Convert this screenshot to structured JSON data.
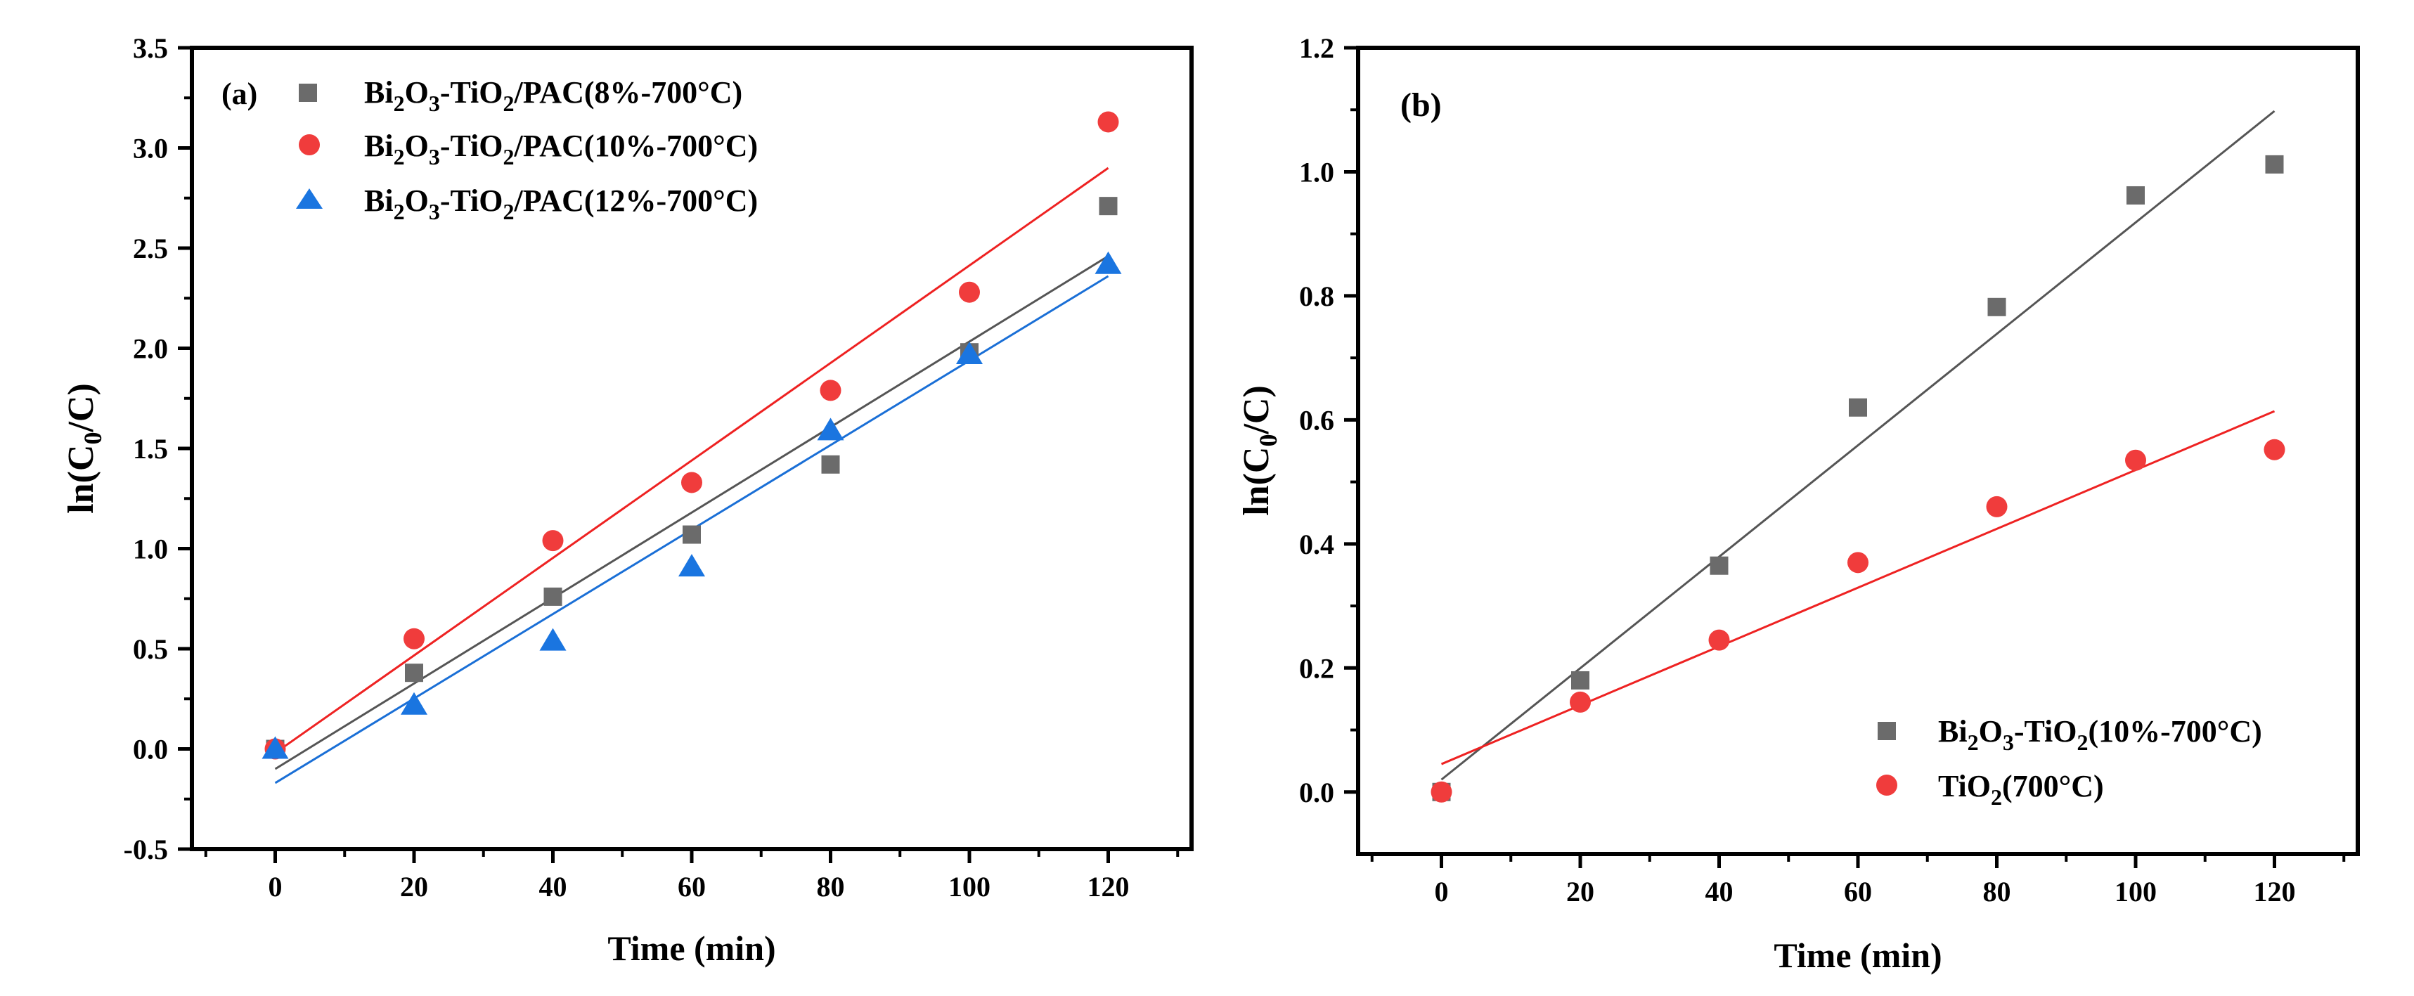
{
  "figure": {
    "x_label": "Time (min)",
    "y_label": "ln(C0/C)"
  },
  "chart_data": [
    {
      "type": "scatter",
      "panel_label": "(a)",
      "xlabel": "Time (min)",
      "ylabel": "ln(C0/C)",
      "xlim": [
        -12,
        132
      ],
      "ylim": [
        -0.5,
        3.5
      ],
      "xticks": [
        0,
        20,
        40,
        60,
        80,
        100,
        120
      ],
      "yticks": [
        -0.5,
        0.0,
        0.5,
        1.0,
        1.5,
        2.0,
        2.5,
        3.0,
        3.5
      ],
      "ytick_decimals": 1,
      "legend_position": "top-left",
      "series": [
        {
          "name": "Bi2O3-TiO2/PAC(8%-700°C)",
          "legend": {
            "a": "Bi",
            "s1": "2",
            "b": "O",
            "s2": "3",
            "c": "-TiO",
            "s3": "2",
            "d": "/PAC(8%-700°C)"
          },
          "marker": "square",
          "color": "#6b6b6b",
          "line_color": "#555555",
          "x": [
            0,
            20,
            40,
            60,
            80,
            100,
            120
          ],
          "y": [
            0.0,
            0.38,
            0.76,
            1.07,
            1.42,
            1.98,
            2.71
          ],
          "fit": {
            "x": [
              0,
              120
            ],
            "y": [
              -0.1,
              2.46
            ]
          }
        },
        {
          "name": "Bi2O3-TiO2/PAC(10%-700°C)",
          "legend": {
            "a": "Bi",
            "s1": "2",
            "b": "O",
            "s2": "3",
            "c": "-TiO",
            "s3": "2",
            "d": "/PAC(10%-700°C)"
          },
          "marker": "circle",
          "color": "#f03c3c",
          "line_color": "#ee2222",
          "x": [
            0,
            20,
            40,
            60,
            80,
            100,
            120
          ],
          "y": [
            0.0,
            0.55,
            1.04,
            1.33,
            1.79,
            2.28,
            3.13
          ],
          "fit": {
            "x": [
              0,
              120
            ],
            "y": [
              -0.02,
              2.9
            ]
          }
        },
        {
          "name": "Bi2O3-TiO2/PAC(12%-700°C)",
          "legend": {
            "a": "Bi",
            "s1": "2",
            "b": "O",
            "s2": "3",
            "c": "-TiO",
            "s3": "2",
            "d": "/PAC(12%-700°C)"
          },
          "marker": "triangle",
          "color": "#1a75e0",
          "line_color": "#1a6fd6",
          "x": [
            0,
            20,
            40,
            60,
            80,
            100,
            120
          ],
          "y": [
            0.0,
            0.22,
            0.54,
            0.91,
            1.59,
            1.97,
            2.42
          ],
          "fit": {
            "x": [
              0,
              120
            ],
            "y": [
              -0.17,
              2.36
            ]
          }
        }
      ]
    },
    {
      "type": "scatter",
      "panel_label": "(b)",
      "xlabel": "Time (min)",
      "ylabel": "ln(C0/C)",
      "xlim": [
        -12,
        132
      ],
      "ylim": [
        -0.1,
        1.2
      ],
      "xticks": [
        0,
        20,
        40,
        60,
        80,
        100,
        120
      ],
      "yticks": [
        0.0,
        0.2,
        0.4,
        0.6,
        0.8,
        1.0,
        1.2
      ],
      "ytick_decimals": 1,
      "legend_position": "bottom-right",
      "series": [
        {
          "name": "Bi2O3-TiO2(10%-700°C)",
          "legend": {
            "a": "Bi",
            "s1": "2",
            "b": "O",
            "s2": "3",
            "c": "-TiO",
            "s3": "2",
            "d": "(10%-700°C)"
          },
          "marker": "square",
          "color": "#6b6b6b",
          "line_color": "#555555",
          "x": [
            0,
            20,
            40,
            60,
            80,
            100,
            120
          ],
          "y": [
            0.0,
            0.18,
            0.365,
            0.62,
            0.782,
            0.962,
            1.012
          ],
          "fit": {
            "x": [
              0,
              120
            ],
            "y": [
              0.02,
              1.098
            ]
          }
        },
        {
          "name": "TiO2(700°C)",
          "legend": {
            "a": "TiO",
            "s1": "2",
            "b": "(700°C)",
            "s2": "",
            "c": "",
            "s3": "",
            "d": ""
          },
          "marker": "circle",
          "color": "#f03c3c",
          "line_color": "#ee2222",
          "x": [
            0,
            20,
            40,
            60,
            80,
            100,
            120
          ],
          "y": [
            0.0,
            0.145,
            0.245,
            0.37,
            0.46,
            0.535,
            0.552
          ],
          "fit": {
            "x": [
              0,
              120
            ],
            "y": [
              0.045,
              0.614
            ]
          }
        }
      ]
    }
  ]
}
